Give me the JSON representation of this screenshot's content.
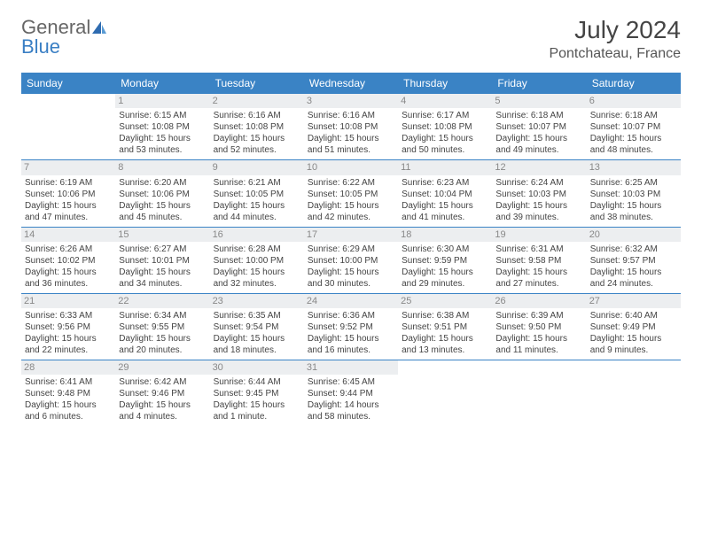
{
  "logo": {
    "part1": "General",
    "part2": "Blue"
  },
  "title": "July 2024",
  "location": "Pontchateau, France",
  "colors": {
    "header_bg": "#3a83c5",
    "header_fg": "#ffffff",
    "daynum_bg": "#eceef0",
    "daynum_fg": "#888888",
    "text": "#444444",
    "rule": "#3a83c5",
    "logo_gray": "#666666",
    "logo_blue": "#3a7fc4"
  },
  "day_headers": [
    "Sunday",
    "Monday",
    "Tuesday",
    "Wednesday",
    "Thursday",
    "Friday",
    "Saturday"
  ],
  "weeks": [
    [
      {
        "empty": true
      },
      {
        "n": "1",
        "sr": "6:15 AM",
        "ss": "10:08 PM",
        "dl": "15 hours and 53 minutes."
      },
      {
        "n": "2",
        "sr": "6:16 AM",
        "ss": "10:08 PM",
        "dl": "15 hours and 52 minutes."
      },
      {
        "n": "3",
        "sr": "6:16 AM",
        "ss": "10:08 PM",
        "dl": "15 hours and 51 minutes."
      },
      {
        "n": "4",
        "sr": "6:17 AM",
        "ss": "10:08 PM",
        "dl": "15 hours and 50 minutes."
      },
      {
        "n": "5",
        "sr": "6:18 AM",
        "ss": "10:07 PM",
        "dl": "15 hours and 49 minutes."
      },
      {
        "n": "6",
        "sr": "6:18 AM",
        "ss": "10:07 PM",
        "dl": "15 hours and 48 minutes."
      }
    ],
    [
      {
        "n": "7",
        "sr": "6:19 AM",
        "ss": "10:06 PM",
        "dl": "15 hours and 47 minutes."
      },
      {
        "n": "8",
        "sr": "6:20 AM",
        "ss": "10:06 PM",
        "dl": "15 hours and 45 minutes."
      },
      {
        "n": "9",
        "sr": "6:21 AM",
        "ss": "10:05 PM",
        "dl": "15 hours and 44 minutes."
      },
      {
        "n": "10",
        "sr": "6:22 AM",
        "ss": "10:05 PM",
        "dl": "15 hours and 42 minutes."
      },
      {
        "n": "11",
        "sr": "6:23 AM",
        "ss": "10:04 PM",
        "dl": "15 hours and 41 minutes."
      },
      {
        "n": "12",
        "sr": "6:24 AM",
        "ss": "10:03 PM",
        "dl": "15 hours and 39 minutes."
      },
      {
        "n": "13",
        "sr": "6:25 AM",
        "ss": "10:03 PM",
        "dl": "15 hours and 38 minutes."
      }
    ],
    [
      {
        "n": "14",
        "sr": "6:26 AM",
        "ss": "10:02 PM",
        "dl": "15 hours and 36 minutes."
      },
      {
        "n": "15",
        "sr": "6:27 AM",
        "ss": "10:01 PM",
        "dl": "15 hours and 34 minutes."
      },
      {
        "n": "16",
        "sr": "6:28 AM",
        "ss": "10:00 PM",
        "dl": "15 hours and 32 minutes."
      },
      {
        "n": "17",
        "sr": "6:29 AM",
        "ss": "10:00 PM",
        "dl": "15 hours and 30 minutes."
      },
      {
        "n": "18",
        "sr": "6:30 AM",
        "ss": "9:59 PM",
        "dl": "15 hours and 29 minutes."
      },
      {
        "n": "19",
        "sr": "6:31 AM",
        "ss": "9:58 PM",
        "dl": "15 hours and 27 minutes."
      },
      {
        "n": "20",
        "sr": "6:32 AM",
        "ss": "9:57 PM",
        "dl": "15 hours and 24 minutes."
      }
    ],
    [
      {
        "n": "21",
        "sr": "6:33 AM",
        "ss": "9:56 PM",
        "dl": "15 hours and 22 minutes."
      },
      {
        "n": "22",
        "sr": "6:34 AM",
        "ss": "9:55 PM",
        "dl": "15 hours and 20 minutes."
      },
      {
        "n": "23",
        "sr": "6:35 AM",
        "ss": "9:54 PM",
        "dl": "15 hours and 18 minutes."
      },
      {
        "n": "24",
        "sr": "6:36 AM",
        "ss": "9:52 PM",
        "dl": "15 hours and 16 minutes."
      },
      {
        "n": "25",
        "sr": "6:38 AM",
        "ss": "9:51 PM",
        "dl": "15 hours and 13 minutes."
      },
      {
        "n": "26",
        "sr": "6:39 AM",
        "ss": "9:50 PM",
        "dl": "15 hours and 11 minutes."
      },
      {
        "n": "27",
        "sr": "6:40 AM",
        "ss": "9:49 PM",
        "dl": "15 hours and 9 minutes."
      }
    ],
    [
      {
        "n": "28",
        "sr": "6:41 AM",
        "ss": "9:48 PM",
        "dl": "15 hours and 6 minutes."
      },
      {
        "n": "29",
        "sr": "6:42 AM",
        "ss": "9:46 PM",
        "dl": "15 hours and 4 minutes."
      },
      {
        "n": "30",
        "sr": "6:44 AM",
        "ss": "9:45 PM",
        "dl": "15 hours and 1 minute."
      },
      {
        "n": "31",
        "sr": "6:45 AM",
        "ss": "9:44 PM",
        "dl": "14 hours and 58 minutes."
      },
      {
        "empty": true
      },
      {
        "empty": true
      },
      {
        "empty": true
      }
    ]
  ],
  "labels": {
    "sunrise": "Sunrise: ",
    "sunset": "Sunset: ",
    "daylight": "Daylight: "
  }
}
